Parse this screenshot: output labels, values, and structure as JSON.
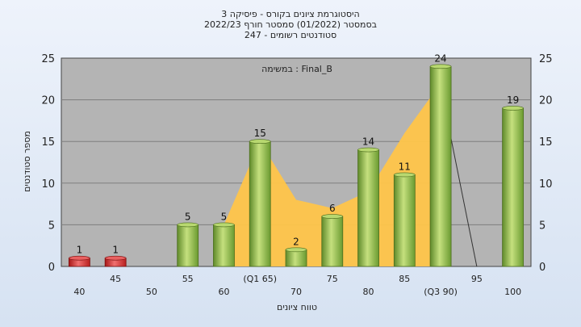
{
  "chart_data": {
    "type": "bar",
    "title_lines": [
      "היסטוגרמת ציונים בקורס - פיסיקה 3",
      "בסמסטר  (01/2022)  סמסטר חורף 2022/23",
      "סטודנטים רשומים - 247"
    ],
    "subtitle": "במשימה : Final_B",
    "xlabel": "טווח ציונים",
    "ylabel": "מספר סטודנטים",
    "ylim": [
      0,
      25
    ],
    "yticks": [
      0,
      5,
      10,
      15,
      20,
      25
    ],
    "categories": [
      "40",
      "45",
      "50",
      "55",
      "60",
      "(Q1 65)",
      "70",
      "75",
      "80",
      "85",
      "(Q3 90)",
      "95",
      "100"
    ],
    "values": [
      1,
      1,
      0,
      5,
      5,
      15,
      2,
      6,
      14,
      11,
      24,
      0,
      19
    ],
    "value_labels": [
      "1",
      "1",
      "",
      "5",
      "5",
      "15",
      "2",
      "6",
      "14",
      "11",
      "24",
      "",
      "19"
    ],
    "failing_count": 2,
    "grid": true,
    "area_series": {
      "description_values": [
        null,
        null,
        null,
        null,
        5,
        15,
        8,
        7,
        9,
        16,
        22,
        null,
        null
      ]
    },
    "colors": {
      "fail_bar": "#d42a2a",
      "pass_bar": "#8ab34a",
      "area": "#ffc54a",
      "plot_bg": "#b4b4b4",
      "grid": "#7e7e7e"
    }
  }
}
